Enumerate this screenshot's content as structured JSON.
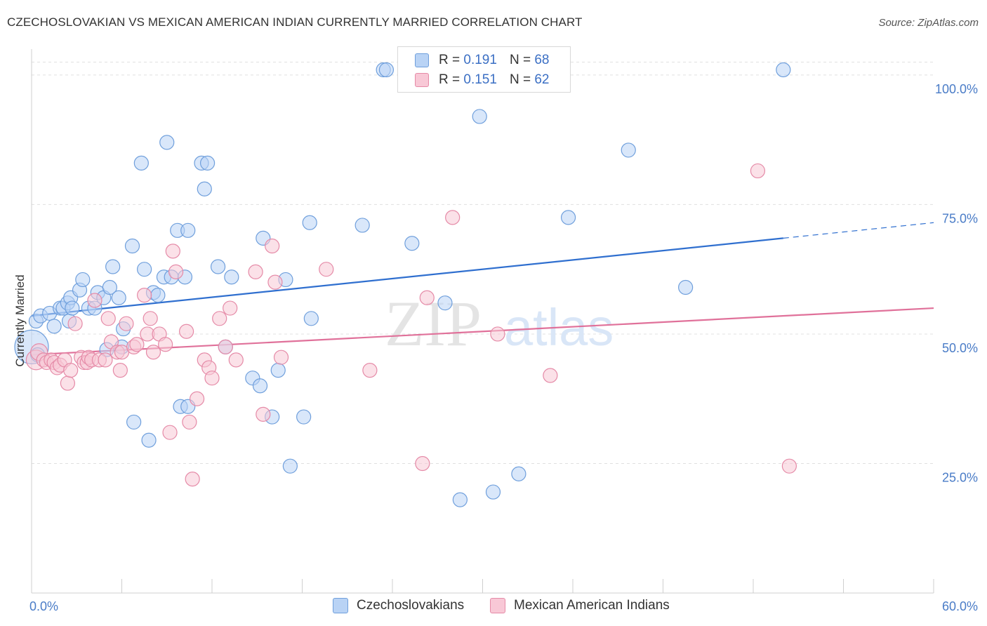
{
  "title": "CZECHOSLOVAKIAN VS MEXICAN AMERICAN INDIAN CURRENTLY MARRIED CORRELATION CHART",
  "source": "Source: ZipAtlas.com",
  "watermark": {
    "zip": "ZIP",
    "atlas": "atlas"
  },
  "legend": {
    "rows": [
      {
        "r_label": "R = ",
        "r_value": "0.191",
        "n_label": "N = ",
        "n_value": "68"
      },
      {
        "r_label": "R = ",
        "r_value": "0.151",
        "n_label": "N = ",
        "n_value": "62"
      }
    ]
  },
  "bottom_legend": [
    "Czechoslovakians",
    "Mexican American Indians"
  ],
  "colors": {
    "blue_fill": "#b9d3f5",
    "blue_stroke": "#6f9fdc",
    "blue_line": "#2f6fcf",
    "pink_fill": "#f8c8d6",
    "pink_stroke": "#e58aa7",
    "pink_line": "#e0719a",
    "tick": "#4a7cc7",
    "grid": "#e0e0e0"
  },
  "chart_data": {
    "type": "scatter",
    "xlabel": "",
    "ylabel": "Currently Married",
    "xlim": [
      0,
      60
    ],
    "ylim": [
      0,
      105
    ],
    "x_tick_labels": [
      "0.0%",
      "60.0%"
    ],
    "y_ticks": [
      25,
      50,
      75,
      100
    ],
    "y_tick_labels": [
      "25.0%",
      "50.0%",
      "75.0%",
      "100.0%"
    ],
    "grid": "horizontal dashed",
    "legend_placement": "top-center",
    "series": [
      {
        "name": "Czechoslovakians",
        "color": "#6f9fdc",
        "trend": {
          "x0": 0,
          "y0": 53.5,
          "x1": 50,
          "y1": 68.5,
          "dashed_to_x": 60,
          "dashed_to_y": 71.5
        },
        "points": [
          [
            0.0,
            47.5,
            24
          ],
          [
            0.3,
            52.5,
            10
          ],
          [
            0.6,
            53.5,
            10
          ],
          [
            1.2,
            54.0,
            10
          ],
          [
            1.5,
            51.5,
            10
          ],
          [
            1.9,
            55.0,
            10
          ],
          [
            2.1,
            55.0,
            10
          ],
          [
            2.4,
            56.0,
            10
          ],
          [
            2.5,
            52.5,
            10
          ],
          [
            2.6,
            57.0,
            10
          ],
          [
            2.7,
            55.0,
            10
          ],
          [
            3.2,
            58.5,
            10
          ],
          [
            3.4,
            60.5,
            10
          ],
          [
            3.8,
            55.0,
            10
          ],
          [
            4.2,
            55.0,
            10
          ],
          [
            4.4,
            58.0,
            10
          ],
          [
            4.8,
            57.0,
            10
          ],
          [
            5.2,
            59.0,
            10
          ],
          [
            5.4,
            63.0,
            10
          ],
          [
            5.0,
            47.0,
            10
          ],
          [
            5.8,
            57.0,
            10
          ],
          [
            6.1,
            51.0,
            10
          ],
          [
            6.0,
            47.5,
            10
          ],
          [
            6.7,
            67.0,
            10
          ],
          [
            6.8,
            33.0,
            10
          ],
          [
            7.3,
            83.0,
            10
          ],
          [
            7.5,
            62.5,
            10
          ],
          [
            7.8,
            29.5,
            10
          ],
          [
            8.1,
            58.0,
            10
          ],
          [
            8.4,
            57.5,
            10
          ],
          [
            8.8,
            61.0,
            10
          ],
          [
            9.0,
            87.0,
            10
          ],
          [
            9.3,
            61.0,
            10
          ],
          [
            9.7,
            70.0,
            10
          ],
          [
            9.9,
            36.0,
            10
          ],
          [
            10.4,
            70.0,
            10
          ],
          [
            10.4,
            36.0,
            10
          ],
          [
            10.2,
            61.0,
            10
          ],
          [
            11.3,
            83.0,
            10
          ],
          [
            11.7,
            83.0,
            10
          ],
          [
            11.5,
            78.0,
            10
          ],
          [
            12.4,
            63.0,
            10
          ],
          [
            12.9,
            47.5,
            10
          ],
          [
            13.3,
            61.0,
            10
          ],
          [
            14.7,
            41.5,
            10
          ],
          [
            15.2,
            40.0,
            10
          ],
          [
            15.4,
            68.5,
            10
          ],
          [
            16.0,
            34.0,
            10
          ],
          [
            16.4,
            43.0,
            10
          ],
          [
            16.9,
            60.5,
            10
          ],
          [
            17.2,
            24.5,
            10
          ],
          [
            18.1,
            34.0,
            10
          ],
          [
            18.5,
            71.5,
            10
          ],
          [
            18.6,
            53.0,
            10
          ],
          [
            22.0,
            71.0,
            10
          ],
          [
            23.4,
            101.0,
            10
          ],
          [
            23.6,
            101.0,
            10
          ],
          [
            25.3,
            67.5,
            10
          ],
          [
            27.5,
            56.0,
            10
          ],
          [
            28.5,
            18.0,
            10
          ],
          [
            29.8,
            92.0,
            10
          ],
          [
            30.7,
            19.5,
            10
          ],
          [
            32.4,
            23.0,
            10
          ],
          [
            35.7,
            72.5,
            10
          ],
          [
            39.7,
            85.5,
            10
          ],
          [
            43.5,
            59.0,
            10
          ],
          [
            50.0,
            101.0,
            10
          ],
          [
            0.4,
            46.0,
            10
          ]
        ]
      },
      {
        "name": "Mexican American Indians",
        "color": "#e58aa7",
        "trend": {
          "x0": 0,
          "y0": 46.0,
          "x1": 60,
          "y1": 55.0
        },
        "points": [
          [
            0.3,
            45.0,
            14
          ],
          [
            0.5,
            46.5,
            12
          ],
          [
            0.8,
            45.0,
            10
          ],
          [
            1.0,
            44.5,
            10
          ],
          [
            1.3,
            45.0,
            10
          ],
          [
            1.5,
            44.5,
            10
          ],
          [
            1.7,
            43.5,
            10
          ],
          [
            1.9,
            44.0,
            10
          ],
          [
            2.2,
            45.0,
            10
          ],
          [
            2.4,
            40.5,
            10
          ],
          [
            2.6,
            43.0,
            10
          ],
          [
            2.9,
            52.0,
            10
          ],
          [
            3.3,
            45.5,
            10
          ],
          [
            3.5,
            44.5,
            10
          ],
          [
            3.7,
            44.5,
            10
          ],
          [
            3.8,
            45.5,
            10
          ],
          [
            4.0,
            45.0,
            10
          ],
          [
            4.2,
            56.5,
            10
          ],
          [
            4.5,
            45.0,
            10
          ],
          [
            4.9,
            45.0,
            10
          ],
          [
            5.1,
            53.0,
            10
          ],
          [
            5.3,
            48.5,
            10
          ],
          [
            5.7,
            46.5,
            10
          ],
          [
            6.0,
            46.5,
            10
          ],
          [
            5.9,
            43.0,
            10
          ],
          [
            6.3,
            52.0,
            10
          ],
          [
            6.8,
            47.5,
            10
          ],
          [
            7.0,
            48.0,
            10
          ],
          [
            7.5,
            57.5,
            10
          ],
          [
            7.7,
            50.0,
            10
          ],
          [
            7.9,
            53.0,
            10
          ],
          [
            8.1,
            46.5,
            10
          ],
          [
            8.5,
            50.0,
            10
          ],
          [
            8.9,
            48.0,
            10
          ],
          [
            9.2,
            31.0,
            10
          ],
          [
            9.4,
            66.0,
            10
          ],
          [
            9.6,
            62.0,
            10
          ],
          [
            10.3,
            50.5,
            10
          ],
          [
            10.5,
            33.0,
            10
          ],
          [
            10.7,
            22.0,
            10
          ],
          [
            11.0,
            37.5,
            10
          ],
          [
            11.5,
            45.0,
            10
          ],
          [
            11.8,
            43.5,
            10
          ],
          [
            12.0,
            41.5,
            10
          ],
          [
            12.5,
            53.0,
            10
          ],
          [
            12.9,
            47.5,
            10
          ],
          [
            13.2,
            55.0,
            10
          ],
          [
            13.6,
            45.0,
            10
          ],
          [
            14.9,
            62.0,
            10
          ],
          [
            15.4,
            34.5,
            10
          ],
          [
            16.0,
            67.0,
            10
          ],
          [
            16.2,
            60.0,
            10
          ],
          [
            16.6,
            45.5,
            10
          ],
          [
            19.6,
            62.5,
            10
          ],
          [
            22.5,
            43.0,
            10
          ],
          [
            26.0,
            25.0,
            10
          ],
          [
            26.3,
            57.0,
            10
          ],
          [
            28.0,
            72.5,
            10
          ],
          [
            31.0,
            50.0,
            10
          ],
          [
            34.5,
            42.0,
            10
          ],
          [
            48.3,
            81.5,
            10
          ],
          [
            50.4,
            24.5,
            10
          ]
        ]
      }
    ]
  }
}
